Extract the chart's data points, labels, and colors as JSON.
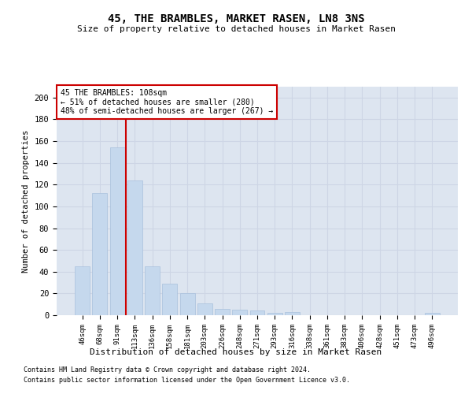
{
  "title": "45, THE BRAMBLES, MARKET RASEN, LN8 3NS",
  "subtitle": "Size of property relative to detached houses in Market Rasen",
  "xlabel": "Distribution of detached houses by size in Market Rasen",
  "ylabel": "Number of detached properties",
  "categories": [
    "46sqm",
    "68sqm",
    "91sqm",
    "113sqm",
    "136sqm",
    "158sqm",
    "181sqm",
    "203sqm",
    "226sqm",
    "248sqm",
    "271sqm",
    "293sqm",
    "316sqm",
    "338sqm",
    "361sqm",
    "383sqm",
    "406sqm",
    "428sqm",
    "451sqm",
    "473sqm",
    "496sqm"
  ],
  "values": [
    45,
    112,
    154,
    124,
    45,
    29,
    20,
    11,
    6,
    5,
    4,
    2,
    3,
    0,
    0,
    0,
    0,
    0,
    0,
    0,
    2
  ],
  "bar_color": "#c5d8ed",
  "bar_edgecolor": "#a8c0dc",
  "grid_color": "#cdd5e5",
  "background_color": "#dde5f0",
  "vline_x": 2.5,
  "vline_color": "#cc0000",
  "annotation_text": "45 THE BRAMBLES: 108sqm\n← 51% of detached houses are smaller (280)\n48% of semi-detached houses are larger (267) →",
  "annotation_box_edgecolor": "#cc0000",
  "ylim": [
    0,
    210
  ],
  "yticks": [
    0,
    20,
    40,
    60,
    80,
    100,
    120,
    140,
    160,
    180,
    200
  ],
  "footer1": "Contains HM Land Registry data © Crown copyright and database right 2024.",
  "footer2": "Contains public sector information licensed under the Open Government Licence v3.0."
}
